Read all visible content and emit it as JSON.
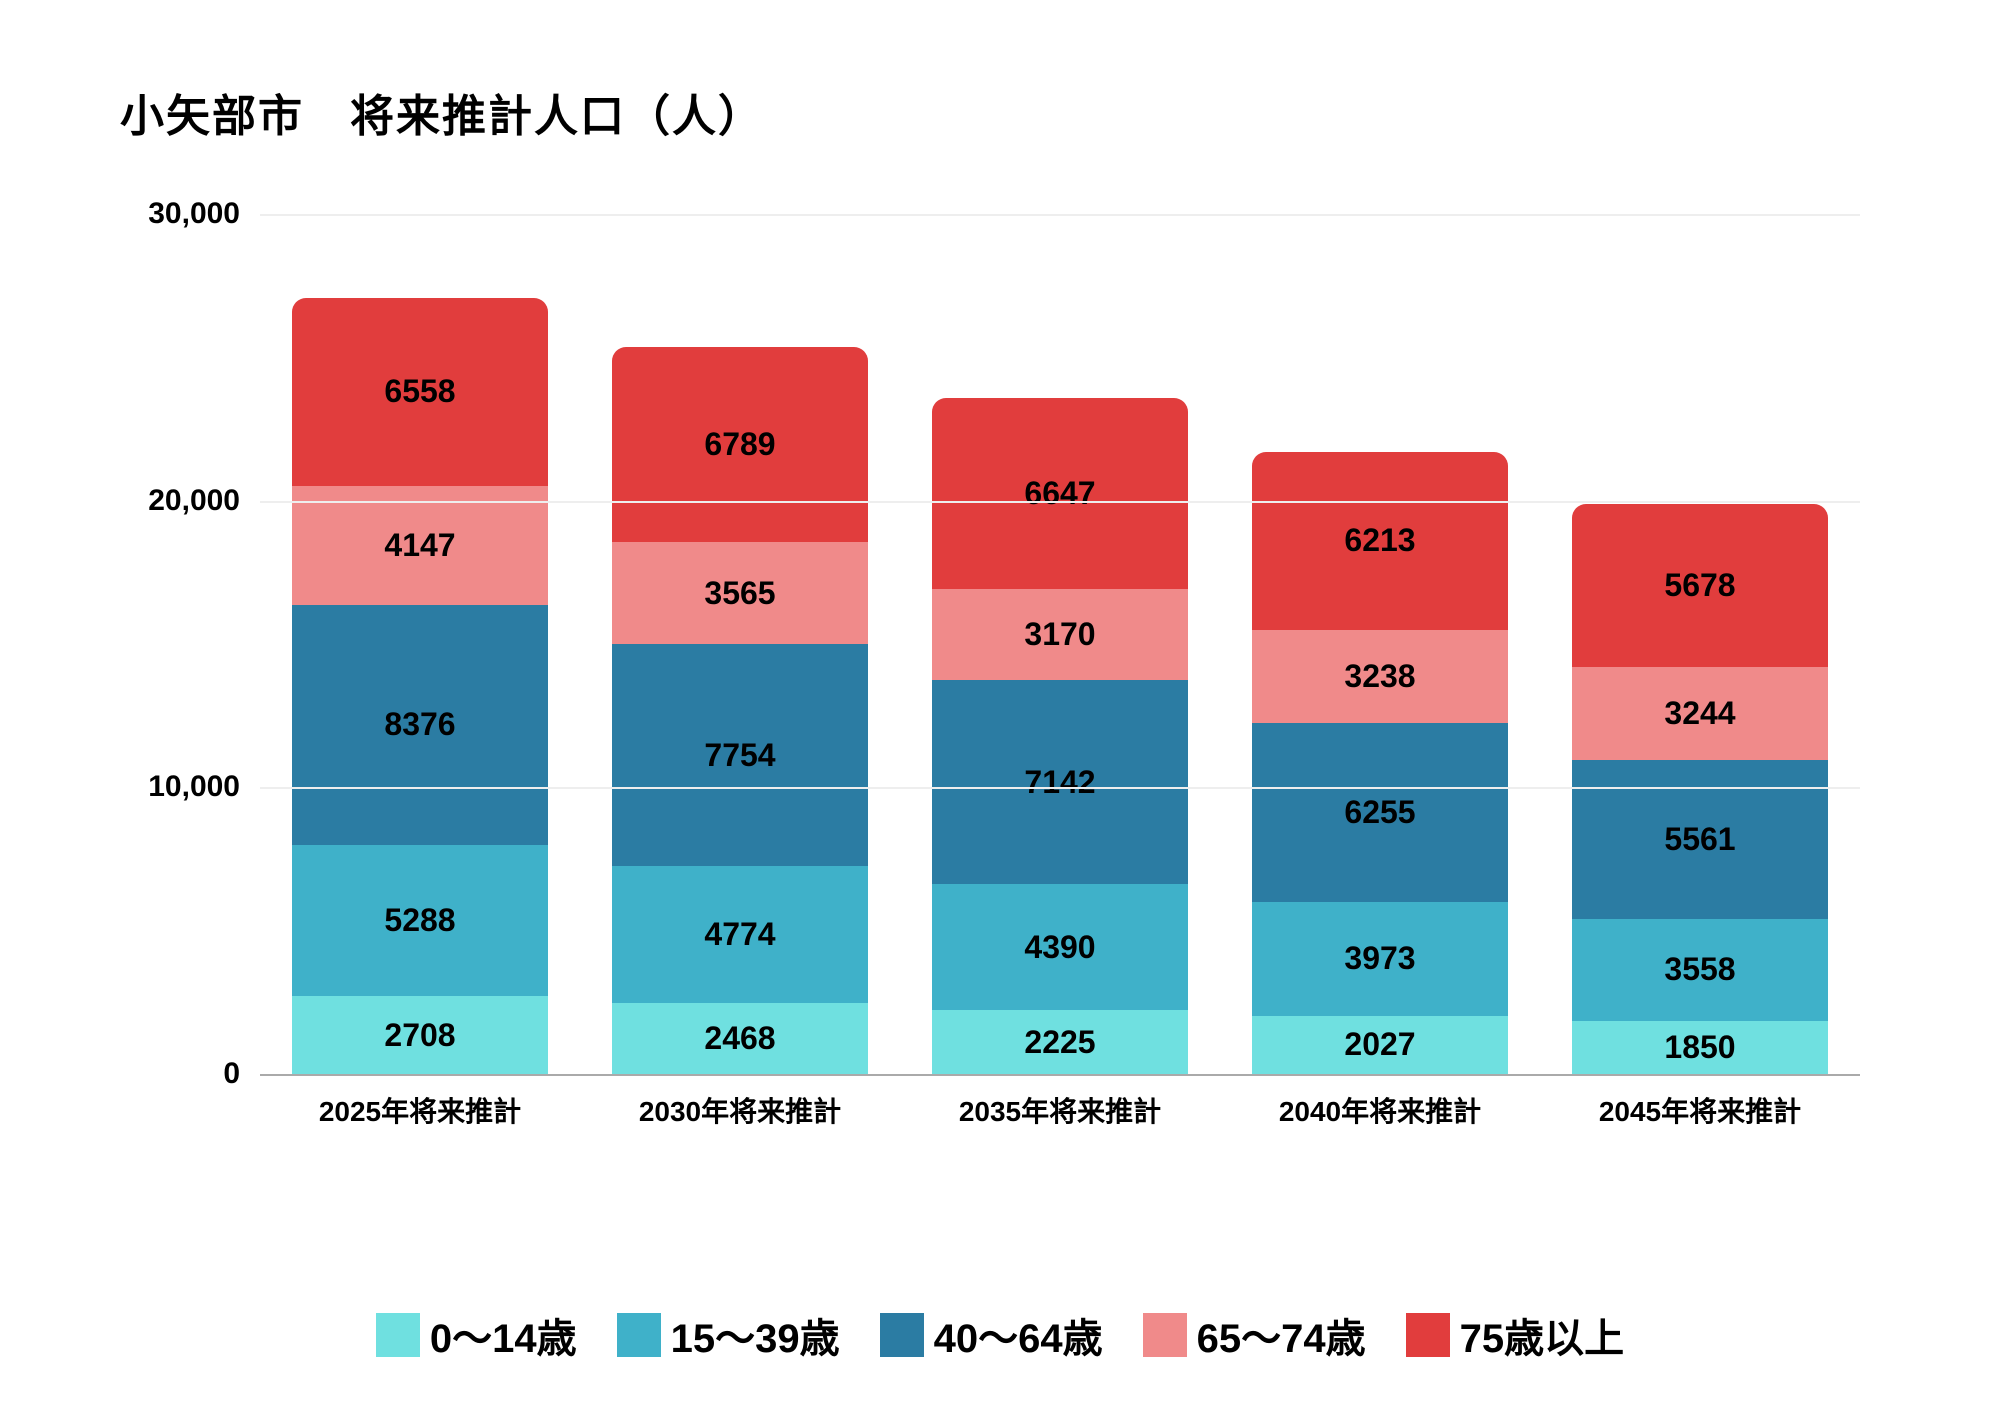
{
  "chart": {
    "type": "stacked-bar",
    "title": "小矢部市　将来推計人口（人）",
    "title_fontsize": 44,
    "background_color": "#ffffff",
    "grid_color": "#eeeeee",
    "axis_color": "#aaaaaa",
    "y": {
      "min": 0,
      "max": 30000,
      "tick_step": 10000,
      "ticks": [
        {
          "v": 0,
          "label": "0"
        },
        {
          "v": 10000,
          "label": "10,000"
        },
        {
          "v": 20000,
          "label": "20,000"
        },
        {
          "v": 30000,
          "label": "30,000"
        }
      ],
      "label_fontsize": 30
    },
    "categories": [
      "2025年将来推計",
      "2030年将来推計",
      "2035年将来推計",
      "2040年将来推計",
      "2045年将来推計"
    ],
    "series": [
      {
        "key": "age_0_14",
        "label": "0～14歳",
        "color": "#6fe0e0"
      },
      {
        "key": "age_15_39",
        "label": "15～39歳",
        "color": "#3fb1c9"
      },
      {
        "key": "age_40_64",
        "label": "40～64歳",
        "color": "#2b7ca3"
      },
      {
        "key": "age_65_74",
        "label": "65～74歳",
        "color": "#f08a8a"
      },
      {
        "key": "age_75_up",
        "label": "75歳以上",
        "color": "#e13d3d"
      }
    ],
    "data": [
      {
        "age_0_14": 2708,
        "age_15_39": 5288,
        "age_40_64": 8376,
        "age_65_74": 4147,
        "age_75_up": 6558
      },
      {
        "age_0_14": 2468,
        "age_15_39": 4774,
        "age_40_64": 7754,
        "age_65_74": 3565,
        "age_75_up": 6789
      },
      {
        "age_0_14": 2225,
        "age_15_39": 4390,
        "age_40_64": 7142,
        "age_65_74": 3170,
        "age_75_up": 6647
      },
      {
        "age_0_14": 2027,
        "age_15_39": 3973,
        "age_40_64": 6255,
        "age_65_74": 3238,
        "age_75_up": 6213
      },
      {
        "age_0_14": 1850,
        "age_15_39": 3558,
        "age_40_64": 5561,
        "age_65_74": 3244,
        "age_75_up": 5678
      }
    ],
    "bar_width_pct": 80,
    "bar_border_radius": 14,
    "value_label_fontsize": 32,
    "xlabel_fontsize": 28,
    "legend_fontsize": 40
  }
}
